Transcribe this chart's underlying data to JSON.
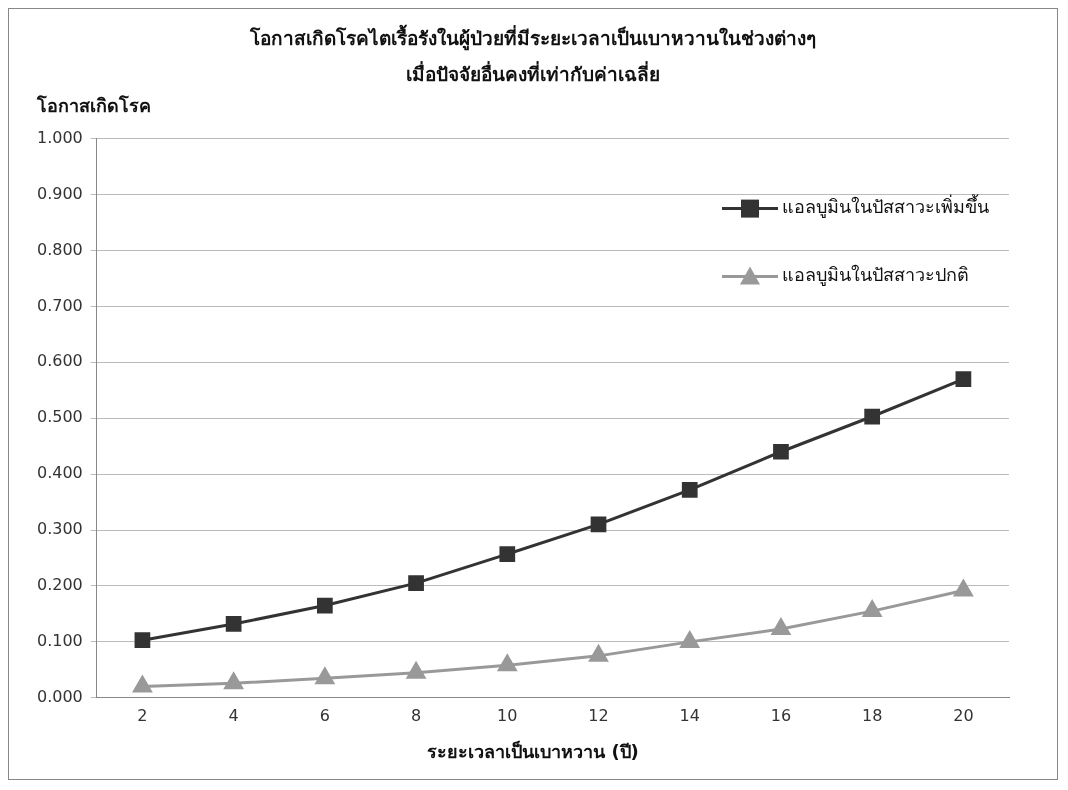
{
  "chart_data": {
    "type": "line",
    "title": "โอกาสเกิดโรคไตเรื้อรังในผู้ป่วยที่มีระยะเวลาเป็นเบาหวานในช่วงต่างๆ",
    "subtitle": "เมื่อปัจจัยอื่นคงที่เท่ากับค่าเฉลี่ย",
    "xlabel": "ระยะเวลาเป็นเบาหวาน (ปี)",
    "ylabel": "โอกาสเกิดโรค",
    "categories": [
      "2",
      "4",
      "6",
      "8",
      "10",
      "12",
      "14",
      "16",
      "18",
      "20"
    ],
    "series": [
      {
        "name": "แอลบูมินในปัสสาวะเพิ่มขึ้น",
        "color": "#333333",
        "marker": "square",
        "values": [
          0.103,
          0.132,
          0.165,
          0.205,
          0.257,
          0.31,
          0.372,
          0.44,
          0.503,
          0.57
        ]
      },
      {
        "name": "แอลบูมินในปัสสาวะปกติ",
        "color": "#999999",
        "marker": "triangle",
        "values": [
          0.02,
          0.026,
          0.035,
          0.045,
          0.058,
          0.075,
          0.1,
          0.123,
          0.155,
          0.192
        ]
      }
    ],
    "ylim": [
      0,
      1
    ],
    "yticks": [
      {
        "value": 0,
        "label": "0.000"
      },
      {
        "value": 0.1,
        "label": "0.100"
      },
      {
        "value": 0.2,
        "label": "0.200"
      },
      {
        "value": 0.3,
        "label": "0.300"
      },
      {
        "value": 0.4,
        "label": "0.400"
      },
      {
        "value": 0.5,
        "label": "0.500"
      },
      {
        "value": 0.6,
        "label": "0.600"
      },
      {
        "value": 0.7,
        "label": "0.700"
      },
      {
        "value": 0.8,
        "label": "0.800"
      },
      {
        "value": 0.9,
        "label": "0.900"
      },
      {
        "value": 1,
        "label": "1.000"
      }
    ],
    "grid": "y",
    "legend": "top right"
  }
}
